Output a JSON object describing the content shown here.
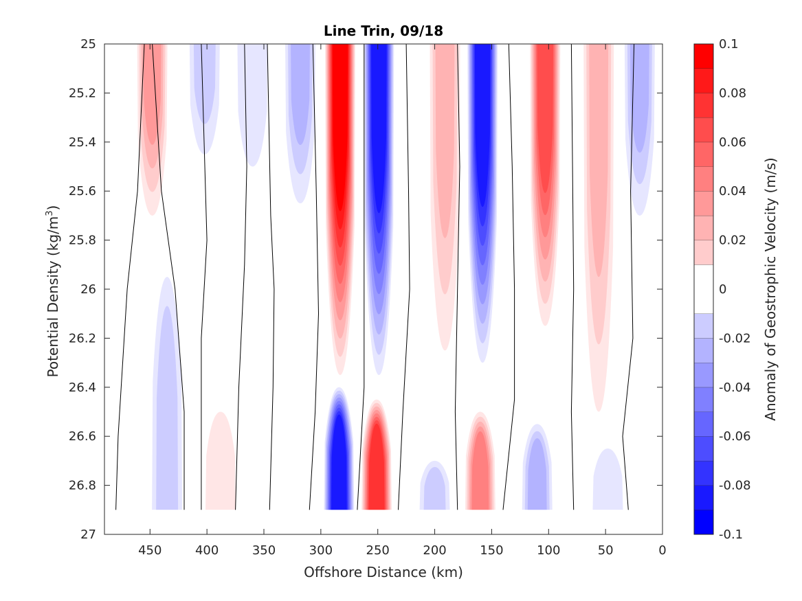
{
  "chart_data": {
    "type": "heatmap",
    "subtype": "filled-contour",
    "title": "Line Trin, 09/18",
    "xlabel": "Offshore Distance (km)",
    "ylabel_main": "Potential Density (kg/m",
    "ylabel_sup": "3",
    "ylabel_close": ")",
    "colorbar_label": "Anomaly of Geostrophic Velocity (m/s)",
    "xlim": [
      490,
      0
    ],
    "x_reversed": true,
    "ylim": [
      25,
      27
    ],
    "y_reversed": true,
    "xticks": [
      450,
      400,
      350,
      300,
      250,
      200,
      150,
      100,
      50,
      0
    ],
    "yticks": [
      25,
      25.2,
      25.4,
      25.6,
      25.8,
      26,
      26.2,
      26.4,
      26.6,
      26.8,
      27
    ],
    "ytick_labels": [
      "25",
      "25.2",
      "25.4",
      "25.6",
      "25.8",
      "26",
      "26.2",
      "26.4",
      "26.6",
      "26.8",
      "27"
    ],
    "clim": [
      -0.1,
      0.1
    ],
    "colorbar_ticks": [
      0.1,
      0.08,
      0.06,
      0.04,
      0.02,
      0,
      -0.02,
      -0.04,
      -0.06,
      -0.08,
      -0.1
    ],
    "colorbar_tick_labels": [
      "0.1",
      "0.08",
      "0.06",
      "0.04",
      "0.02",
      "0",
      "-0.02",
      "-0.04",
      "-0.06",
      "-0.08",
      "-0.1"
    ],
    "contour_levels": [
      -0.1,
      -0.09,
      -0.08,
      -0.07,
      -0.06,
      -0.05,
      -0.04,
      -0.03,
      -0.02,
      -0.01,
      0.01,
      0.02,
      0.03,
      0.04,
      0.05,
      0.06,
      0.07,
      0.08,
      0.09,
      0.1
    ],
    "data_ymax": 26.9,
    "colormap": {
      "negative": "#0000ff",
      "neutral": "#ffffff",
      "positive": "#ff0000"
    },
    "features": [
      {
        "x": 448,
        "y0": 25.0,
        "y1": 25.7,
        "v": 0.04
      },
      {
        "x": 402,
        "y0": 25.0,
        "y1": 25.45,
        "v": -0.02
      },
      {
        "x": 360,
        "y0": 25.0,
        "y1": 25.5,
        "v": -0.015
      },
      {
        "x": 318,
        "y0": 25.0,
        "y1": 25.65,
        "v": -0.03
      },
      {
        "x": 283,
        "y0": 25.0,
        "y1": 26.35,
        "v": 0.1
      },
      {
        "x": 249,
        "y0": 25.0,
        "y1": 26.35,
        "v": -0.09
      },
      {
        "x": 191,
        "y0": 25.0,
        "y1": 26.25,
        "v": 0.035
      },
      {
        "x": 158,
        "y0": 25.0,
        "y1": 26.3,
        "v": -0.09
      },
      {
        "x": 103,
        "y0": 25.0,
        "y1": 26.15,
        "v": 0.075
      },
      {
        "x": 56,
        "y0": 25.0,
        "y1": 26.5,
        "v": 0.035
      },
      {
        "x": 20,
        "y0": 25.0,
        "y1": 25.7,
        "v": -0.03
      },
      {
        "x": 435,
        "y0": 25.95,
        "y1": 26.9,
        "v": -0.025
      },
      {
        "x": 388,
        "y0": 26.5,
        "y1": 26.9,
        "v": 0.015
      },
      {
        "x": 284,
        "y0": 26.4,
        "y1": 26.9,
        "v": -0.09
      },
      {
        "x": 251,
        "y0": 26.45,
        "y1": 26.9,
        "v": 0.08
      },
      {
        "x": 200,
        "y0": 26.7,
        "y1": 26.9,
        "v": -0.025
      },
      {
        "x": 160,
        "y0": 26.5,
        "y1": 26.9,
        "v": 0.05
      },
      {
        "x": 110,
        "y0": 26.55,
        "y1": 26.9,
        "v": -0.03
      },
      {
        "x": 48,
        "y0": 26.65,
        "y1": 26.9,
        "v": -0.015
      }
    ],
    "zero_contours": [
      [
        [
          480,
          26.9
        ],
        [
          478,
          26.6
        ],
        [
          470,
          26.0
        ],
        [
          461,
          25.6
        ],
        [
          455,
          25.0
        ]
      ],
      [
        [
          420,
          26.9
        ],
        [
          420,
          26.5
        ],
        [
          428,
          26.0
        ],
        [
          440,
          25.6
        ],
        [
          448,
          25.0
        ]
      ],
      [
        [
          405,
          26.9
        ],
        [
          405,
          26.2
        ],
        [
          400,
          25.8
        ],
        [
          405,
          25.0
        ]
      ],
      [
        [
          375,
          26.9
        ],
        [
          372,
          26.4
        ],
        [
          367,
          25.9
        ],
        [
          365,
          25.5
        ],
        [
          367,
          25.0
        ]
      ],
      [
        [
          345,
          26.9
        ],
        [
          342,
          26.4
        ],
        [
          341,
          26.0
        ],
        [
          344,
          25.7
        ],
        [
          347,
          25.0
        ]
      ],
      [
        [
          310,
          26.9
        ],
        [
          305,
          26.5
        ],
        [
          302,
          26.1
        ],
        [
          304,
          25.6
        ],
        [
          307,
          25.0
        ]
      ],
      [
        [
          268,
          26.9
        ],
        [
          262,
          26.4
        ],
        [
          262,
          25.8
        ],
        [
          262,
          25.0
        ]
      ],
      [
        [
          232,
          26.9
        ],
        [
          228,
          26.5
        ],
        [
          222,
          26.0
        ],
        [
          223,
          25.6
        ],
        [
          225,
          25.0
        ]
      ],
      [
        [
          180,
          26.9
        ],
        [
          182,
          26.5
        ],
        [
          180,
          26.0
        ],
        [
          178,
          25.5
        ],
        [
          180,
          25.0
        ]
      ],
      [
        [
          140,
          26.9
        ],
        [
          130,
          26.45
        ],
        [
          130,
          26.0
        ],
        [
          132,
          25.5
        ],
        [
          135,
          25.0
        ]
      ],
      [
        [
          78,
          26.9
        ],
        [
          80,
          26.5
        ],
        [
          78,
          26.0
        ],
        [
          79,
          25.5
        ],
        [
          80,
          25.0
        ]
      ],
      [
        [
          30,
          26.9
        ],
        [
          35,
          26.6
        ],
        [
          26,
          26.2
        ],
        [
          28,
          25.6
        ],
        [
          25,
          25.0
        ]
      ]
    ]
  }
}
